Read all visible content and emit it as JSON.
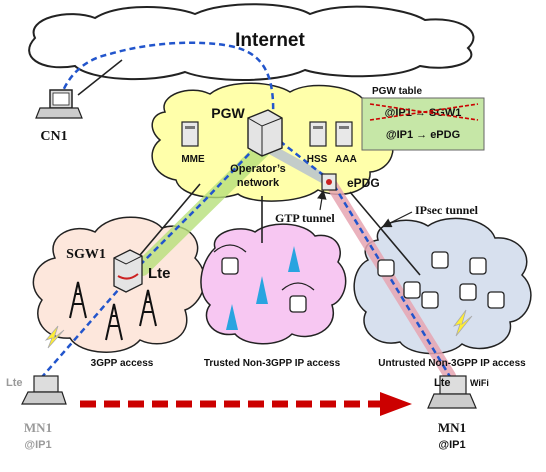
{
  "clouds": {
    "internet": "Internet",
    "pgw": "PGW",
    "operator_line1": "Operator’s",
    "operator_line2": "network",
    "sgw1": "SGW1"
  },
  "nodes": {
    "cn1": "CN1",
    "mme": "MME",
    "hss": "HSS",
    "aaa": "AAA",
    "epdg": "ePDG",
    "mn1_left": "MN1",
    "ip1_left": "@IP1",
    "mn1_right": "MN1",
    "ip1_right": "@IP1",
    "lte_badge": "Lte",
    "wifi_badge": "WiFi"
  },
  "pgw_table": {
    "title": "PGW table",
    "old_entry": "@IP1 → SGW1",
    "new_entry": "@IP1 → ePDG"
  },
  "tunnels": {
    "gtp": "GTP tunnel",
    "ipsec": "IPsec tunnel"
  },
  "access_labels": {
    "threegpp": "3GPP access",
    "trusted": "Trusted Non-3GPP IP access",
    "untrusted": "Untrusted Non-3GPP IP access"
  },
  "colors": {
    "cloud_internet": "#ffffff",
    "cloud_pgw": "#ffffaa",
    "cloud_sgw": "#fde7dc",
    "cloud_trusted": "#f7c7f2",
    "cloud_untrusted": "#d7e0ee",
    "table_bg": "#c6e7a7",
    "handover_arrow": "#cc0000",
    "path_blue": "#2255cc",
    "tunnel_green": "#b7e07a",
    "tunnel_pink": "#e6a4b2"
  }
}
